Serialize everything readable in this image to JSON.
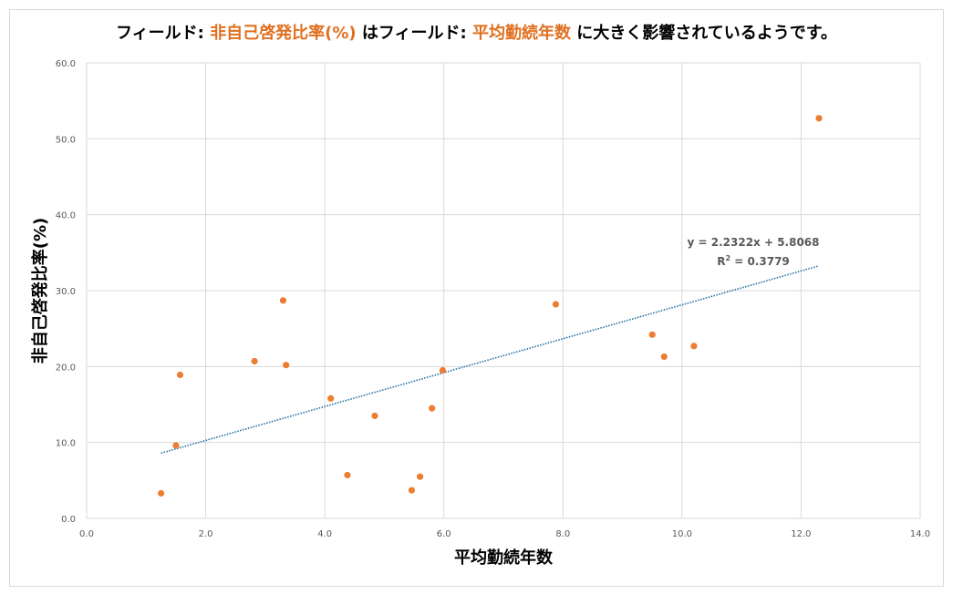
{
  "title": {
    "prefix": "フィールド: ",
    "field_y": "非自己啓発比率(%)",
    "middle": " はフィールド: ",
    "field_x": "平均勤続年数",
    "suffix": " に大きく影響されているようです。"
  },
  "trendline_label": {
    "equation": "y = 2.2322x + 5.8068",
    "r2_prefix": "R",
    "r2_sup": "2",
    "r2_value": " = 0.3779"
  },
  "colors": {
    "points": "#ed7d31",
    "trendline": "#1f6fa0",
    "highlight_text": "#e07020",
    "grid": "#d9d9d9"
  },
  "chart_data": {
    "type": "scatter",
    "xlabel": "平均勤続年数",
    "ylabel": "非自己啓発比率(%)",
    "xlim": [
      0,
      14
    ],
    "ylim": [
      0,
      60
    ],
    "xticks": [
      "0.0",
      "2.0",
      "4.0",
      "6.0",
      "8.0",
      "10.0",
      "12.0",
      "14.0"
    ],
    "yticks": [
      "0.0",
      "10.0",
      "20.0",
      "30.0",
      "40.0",
      "50.0",
      "60.0"
    ],
    "grid": true,
    "series": [
      {
        "x": [
          1.25,
          1.5,
          1.57,
          2.82,
          3.3,
          3.35,
          4.1,
          4.38,
          4.84,
          5.46,
          5.6,
          5.8,
          5.98,
          7.88,
          9.5,
          9.7,
          10.2,
          12.3
        ],
        "y": [
          3.3,
          9.6,
          18.9,
          20.7,
          28.7,
          20.2,
          15.8,
          5.7,
          13.5,
          3.7,
          5.5,
          14.5,
          19.5,
          28.2,
          24.2,
          21.3,
          22.7,
          52.7
        ]
      }
    ],
    "trendline": {
      "slope": 2.2322,
      "intercept": 5.8068,
      "x_range": [
        1.25,
        12.3
      ],
      "r2": 0.3779
    }
  }
}
